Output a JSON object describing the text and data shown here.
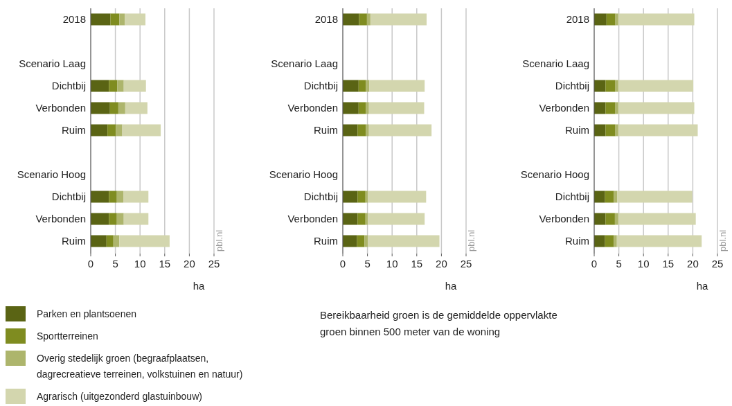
{
  "chart_data": [
    {
      "type": "bar",
      "orientation": "horizontal",
      "stacked": true,
      "xlabel": "ha",
      "categories": [
        "2018",
        null,
        "Scenario Laag",
        "Dichtbij",
        "Verbonden",
        "Ruim",
        null,
        "Scenario Hoog",
        "Dichtbij",
        "Verbonden",
        "Ruim"
      ],
      "xlim": [
        0,
        25
      ],
      "xticks": [
        0,
        5,
        10,
        15,
        20,
        25
      ],
      "grid": "x",
      "legend": "bottom left",
      "series": [
        {
          "name": "Parken en plantsoenen",
          "color": "#5a6414",
          "values": [
            4.0,
            null,
            null,
            3.7,
            3.9,
            3.4,
            null,
            null,
            3.7,
            3.7,
            3.2
          ]
        },
        {
          "name": "Sportterreinen",
          "color": "#7f8c20",
          "values": [
            1.8,
            null,
            null,
            1.7,
            1.7,
            1.7,
            null,
            null,
            1.6,
            1.6,
            1.4
          ]
        },
        {
          "name": "Overig stedelijk groen (begraafplaatsen, dagrecreatieve terreinen, volkstuinen en natuur)",
          "color": "#adb56c",
          "values": [
            1.1,
            null,
            null,
            1.3,
            1.4,
            1.3,
            null,
            null,
            1.3,
            1.4,
            1.2
          ]
        },
        {
          "name": "Agrarisch (uitgezonderd glastuinbouw)",
          "color": "#d3d6ae",
          "values": [
            4.2,
            null,
            null,
            4.5,
            4.5,
            7.8,
            null,
            null,
            5.1,
            5.0,
            10.2
          ]
        }
      ],
      "annotations": [
        "pbl.nl",
        "Bereikbaarheid groen is de gemiddelde oppervlakte groen binnen 500 meter van de woning"
      ]
    },
    {
      "type": "bar",
      "orientation": "horizontal",
      "stacked": true,
      "xlabel": "ha",
      "categories": [
        "2018",
        null,
        "Scenario Laag",
        "Dichtbij",
        "Verbonden",
        "Ruim",
        null,
        "Scenario Hoog",
        "Dichtbij",
        "Verbonden",
        "Ruim"
      ],
      "xlim": [
        0,
        25
      ],
      "xticks": [
        0,
        5,
        10,
        15,
        20,
        25
      ],
      "grid": "x",
      "series": [
        {
          "color": "#5a6414",
          "values": [
            3.3,
            null,
            null,
            3.2,
            3.2,
            3.0,
            null,
            null,
            3.0,
            3.0,
            2.9
          ]
        },
        {
          "color": "#7f8c20",
          "values": [
            1.6,
            null,
            null,
            1.5,
            1.5,
            1.7,
            null,
            null,
            1.6,
            1.6,
            1.5
          ]
        },
        {
          "color": "#adb56c",
          "values": [
            0.7,
            null,
            null,
            0.7,
            0.6,
            0.6,
            null,
            null,
            0.5,
            0.5,
            0.7
          ]
        },
        {
          "color": "#d3d6ae",
          "values": [
            11.4,
            null,
            null,
            11.2,
            11.2,
            12.7,
            null,
            null,
            11.8,
            11.5,
            14.5
          ]
        }
      ],
      "annotations": [
        "pbl.nl"
      ]
    },
    {
      "type": "bar",
      "orientation": "horizontal",
      "stacked": true,
      "xlabel": "ha",
      "categories": [
        "2018",
        null,
        "Scenario Laag",
        "Dichtbij",
        "Verbonden",
        "Ruim",
        null,
        "Scenario Hoog",
        "Dichtbij",
        "Verbonden",
        "Ruim"
      ],
      "xlim": [
        0,
        25
      ],
      "xticks": [
        0,
        5,
        10,
        15,
        20,
        25
      ],
      "grid": "x",
      "series": [
        {
          "color": "#5a6414",
          "values": [
            2.5,
            null,
            null,
            2.3,
            2.3,
            2.3,
            null,
            null,
            2.2,
            2.3,
            2.2
          ]
        },
        {
          "color": "#7f8c20",
          "values": [
            1.8,
            null,
            null,
            2.0,
            2.0,
            2.0,
            null,
            null,
            1.8,
            1.9,
            1.8
          ]
        },
        {
          "color": "#adb56c",
          "values": [
            0.6,
            null,
            null,
            0.6,
            0.6,
            0.6,
            null,
            null,
            0.7,
            0.7,
            0.6
          ]
        },
        {
          "color": "#d3d6ae",
          "values": [
            15.4,
            null,
            null,
            15.2,
            15.4,
            16.1,
            null,
            null,
            15.2,
            15.7,
            17.2
          ]
        }
      ],
      "annotations": [
        "pbl.nl"
      ]
    }
  ]
}
